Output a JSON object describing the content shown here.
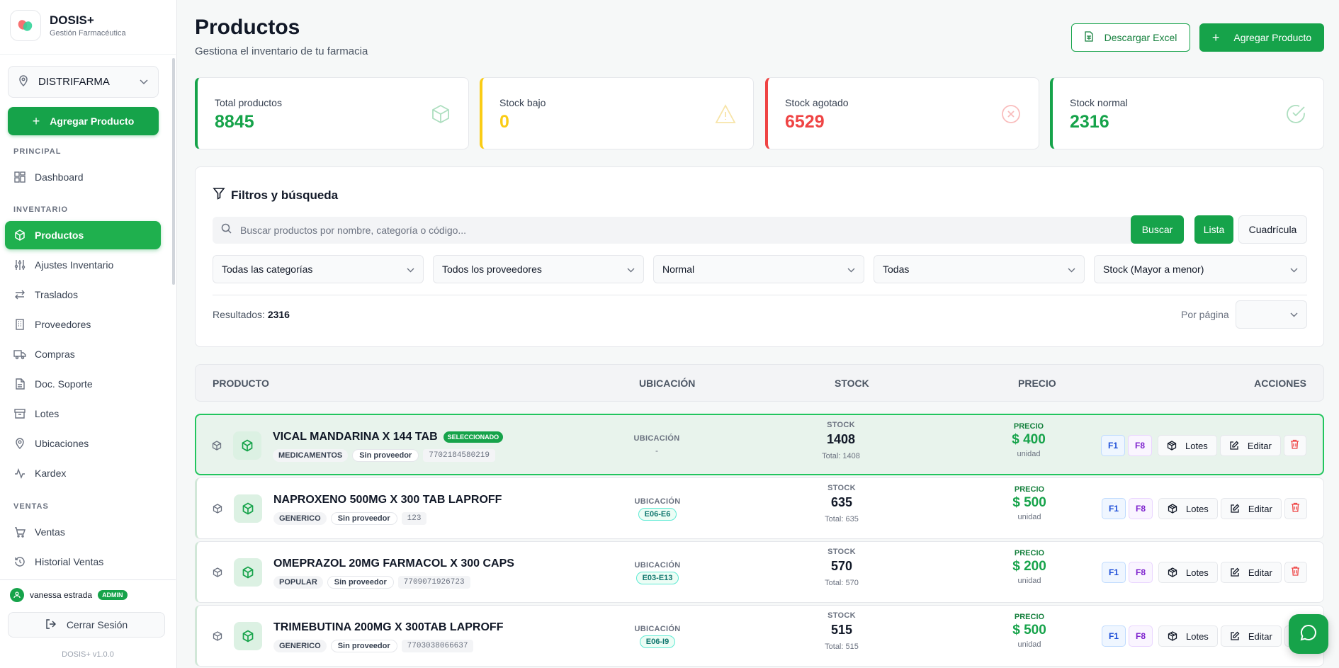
{
  "brand": {
    "name": "DOSIS+",
    "subtitle": "Gestión Farmacéutica"
  },
  "sidebar": {
    "store": "DISTRIFARMA",
    "add_button": "Agregar Producto",
    "sections": {
      "principal": "PRINCIPAL",
      "inventario": "INVENTARIO",
      "ventas": "VENTAS"
    },
    "items": [
      {
        "label": "Dashboard",
        "icon": "grid-icon"
      },
      {
        "label": "Productos",
        "icon": "box-icon",
        "active": true
      },
      {
        "label": "Ajustes Inventario",
        "icon": "sliders-icon"
      },
      {
        "label": "Traslados",
        "icon": "transfer-icon"
      },
      {
        "label": "Proveedores",
        "icon": "building-icon"
      },
      {
        "label": "Compras",
        "icon": "truck-icon"
      },
      {
        "label": "Doc. Soporte",
        "icon": "document-icon"
      },
      {
        "label": "Lotes",
        "icon": "archive-icon"
      },
      {
        "label": "Ubicaciones",
        "icon": "map-pin-icon"
      },
      {
        "label": "Kardex",
        "icon": "activity-icon"
      },
      {
        "label": "Ventas",
        "icon": "cart-icon"
      },
      {
        "label": "Historial Ventas",
        "icon": "history-icon"
      }
    ],
    "user": {
      "name": "vanessa estrada",
      "role": "ADMIN"
    },
    "logout": "Cerrar Sesión",
    "version": "DOSIS+ v1.0.0"
  },
  "header": {
    "title": "Productos",
    "subtitle": "Gestiona el inventario de tu farmacia",
    "excel_button": "Descargar Excel",
    "add_button": "Agregar Producto"
  },
  "stats": [
    {
      "label": "Total productos",
      "value": "8845",
      "color": "#16a34a"
    },
    {
      "label": "Stock bajo",
      "value": "0",
      "color": "#facc15"
    },
    {
      "label": "Stock agotado",
      "value": "6529",
      "color": "#ef4444"
    },
    {
      "label": "Stock normal",
      "value": "2316",
      "color": "#16a34a"
    }
  ],
  "filters": {
    "title": "Filtros y búsqueda",
    "search_placeholder": "Buscar productos por nombre, categoría o código...",
    "search_button": "Buscar",
    "view_list": "Lista",
    "view_grid": "Cuadrícula",
    "selects": [
      "Todas las categorías",
      "Todos los proveedores",
      "Normal",
      "Todas",
      "Stock (Mayor a menor)"
    ],
    "results_label": "Resultados:",
    "results_count": "2316",
    "per_page_label": "Por página"
  },
  "table": {
    "headers": {
      "product": "PRODUCTO",
      "location": "UBICACIÓN",
      "stock": "STOCK",
      "price": "PRECIO",
      "actions": "ACCIONES"
    },
    "labels": {
      "location": "UBICACIÓN",
      "stock": "STOCK",
      "price": "PRECIO",
      "unit": "unidad",
      "selected": "SELECCIONADO",
      "f1": "F1",
      "f8": "F8",
      "lotes": "Lotes",
      "edit": "Editar"
    },
    "rows": [
      {
        "name": "VICAL MANDARINA X 144 TAB",
        "selected": true,
        "category": "MEDICAMENTOS",
        "provider": "Sin proveedor",
        "code": "7702184580219",
        "location": "-",
        "stock": "1408",
        "total": "Total: 1408",
        "price": "$ 400"
      },
      {
        "name": "NAPROXENO 500MG X 300 TAB LAPROFF",
        "selected": false,
        "category": "GENERICO",
        "provider": "Sin proveedor",
        "code": "123",
        "location": "E06-E6",
        "stock": "635",
        "total": "Total: 635",
        "price": "$ 500"
      },
      {
        "name": "OMEPRAZOL 20MG FARMACOL X 300 CAPS",
        "selected": false,
        "category": "POPULAR",
        "provider": "Sin proveedor",
        "code": "7709071926723",
        "location": "E03-E13",
        "stock": "570",
        "total": "Total: 570",
        "price": "$ 200"
      },
      {
        "name": "TRIMEBUTINA 200MG X 300TAB LAPROFF",
        "selected": false,
        "category": "GENERICO",
        "provider": "Sin proveedor",
        "code": "7703038066637",
        "location": "E06-I9",
        "stock": "515",
        "total": "Total: 515",
        "price": "$ 500"
      }
    ]
  },
  "colors": {
    "accent": "#16a34a",
    "danger": "#ef4444",
    "warning": "#facc15"
  }
}
